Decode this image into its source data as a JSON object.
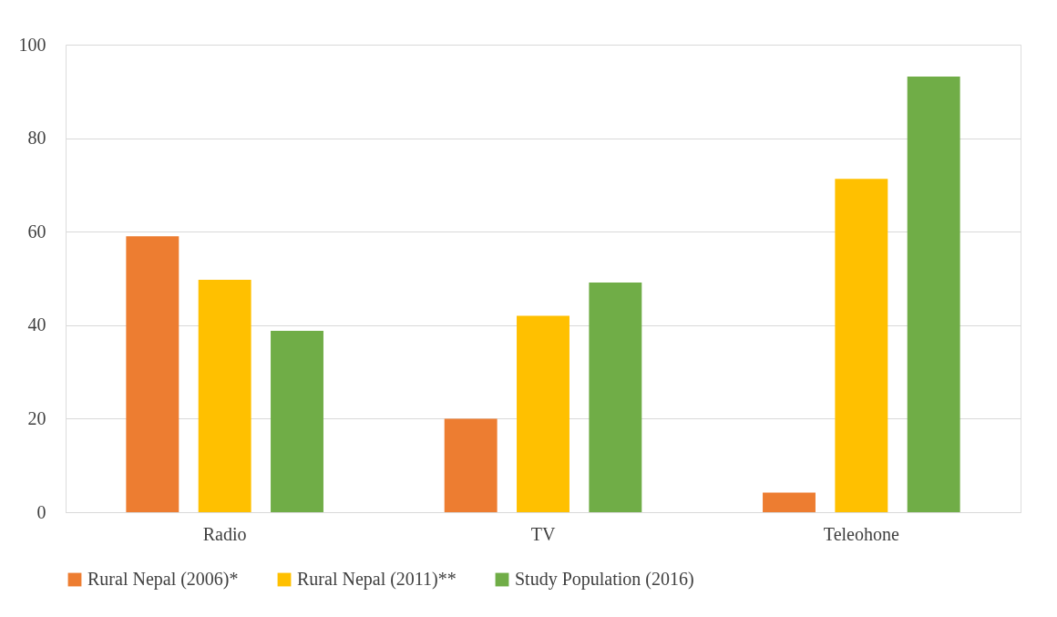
{
  "chart_data": {
    "type": "bar",
    "categories": [
      "Radio",
      "TV",
      "Teleohone"
    ],
    "series": [
      {
        "name": "Rural Nepal (2006)*",
        "color": "#ed7d31",
        "values": [
          59,
          20,
          4.2
        ]
      },
      {
        "name": "Rural Nepal (2011)**",
        "color": "#ffc000",
        "values": [
          49.7,
          42,
          71.3
        ]
      },
      {
        "name": "Study Population (2016)",
        "color": "#70ad47",
        "values": [
          38.8,
          49.1,
          93.2
        ]
      }
    ],
    "ylim": [
      0,
      100
    ],
    "yticks": [
      0,
      20,
      40,
      60,
      80,
      100
    ],
    "grid": "y",
    "legend": "bottom"
  }
}
